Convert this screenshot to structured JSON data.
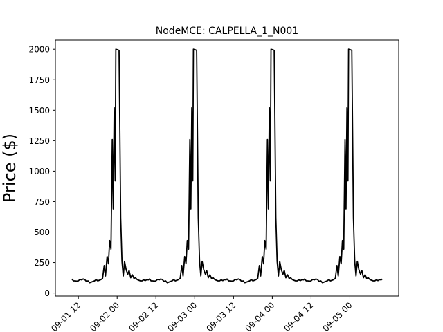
{
  "chart_data": {
    "type": "line",
    "title": "NodeMCE: CALPELLA_1_N001",
    "xlabel": "",
    "ylabel": "Price ($)",
    "ylim": [
      -25,
      2075
    ],
    "yticks": [
      0,
      250,
      500,
      750,
      1000,
      1250,
      1500,
      1750,
      2000
    ],
    "xticks": [
      {
        "label": "09-01 12",
        "hour": 12
      },
      {
        "label": "09-02 00",
        "hour": 24
      },
      {
        "label": "09-02 12",
        "hour": 36
      },
      {
        "label": "09-03 00",
        "hour": 48
      },
      {
        "label": "09-03 12",
        "hour": 60
      },
      {
        "label": "09-04 00",
        "hour": 72
      },
      {
        "label": "09-04 12",
        "hour": 84
      },
      {
        "label": "09-05 00",
        "hour": 96
      }
    ],
    "grid": false,
    "line_color": "#000000",
    "series": [
      {
        "name": "",
        "daily_profile": [
          {
            "t": 0,
            "y": 115
          },
          {
            "t": 0.5,
            "y": 100
          },
          {
            "t": 1,
            "y": 100
          },
          {
            "t": 1.5,
            "y": 98
          },
          {
            "t": 2,
            "y": 100
          },
          {
            "t": 2.5,
            "y": 112
          },
          {
            "t": 3,
            "y": 108
          },
          {
            "t": 3.5,
            "y": 115
          },
          {
            "t": 4,
            "y": 110
          },
          {
            "t": 4.5,
            "y": 95
          },
          {
            "t": 5,
            "y": 100
          },
          {
            "t": 5.5,
            "y": 85
          },
          {
            "t": 6,
            "y": 90
          },
          {
            "t": 6.5,
            "y": 95
          },
          {
            "t": 7,
            "y": 100
          },
          {
            "t": 7.5,
            "y": 110
          },
          {
            "t": 8,
            "y": 100
          },
          {
            "t": 8.5,
            "y": 105
          },
          {
            "t": 9,
            "y": 110
          },
          {
            "t": 9.5,
            "y": 120
          },
          {
            "t": 10,
            "y": 225
          },
          {
            "t": 10.4,
            "y": 140
          },
          {
            "t": 10.9,
            "y": 300
          },
          {
            "t": 11.3,
            "y": 240
          },
          {
            "t": 11.7,
            "y": 430
          },
          {
            "t": 12.1,
            "y": 360
          },
          {
            "t": 12.5,
            "y": 1260
          },
          {
            "t": 12.8,
            "y": 690
          },
          {
            "t": 13.1,
            "y": 1520
          },
          {
            "t": 13.4,
            "y": 920
          },
          {
            "t": 13.6,
            "y": 2000
          },
          {
            "t": 14.2,
            "y": 1995
          },
          {
            "t": 14.6,
            "y": 1990
          },
          {
            "t": 15.1,
            "y": 620
          },
          {
            "t": 15.5,
            "y": 260
          },
          {
            "t": 15.9,
            "y": 140
          },
          {
            "t": 16.3,
            "y": 260
          },
          {
            "t": 16.8,
            "y": 190
          },
          {
            "t": 17.3,
            "y": 155
          },
          {
            "t": 17.7,
            "y": 185
          },
          {
            "t": 18.2,
            "y": 125
          },
          {
            "t": 18.7,
            "y": 150
          },
          {
            "t": 19.2,
            "y": 120
          },
          {
            "t": 19.7,
            "y": 125
          },
          {
            "t": 20.2,
            "y": 110
          },
          {
            "t": 20.7,
            "y": 105
          },
          {
            "t": 21.2,
            "y": 100
          },
          {
            "t": 21.7,
            "y": 100
          },
          {
            "t": 22.2,
            "y": 108
          },
          {
            "t": 22.7,
            "y": 102
          },
          {
            "t": 23.2,
            "y": 110
          },
          {
            "t": 23.7,
            "y": 108
          }
        ],
        "start_hour": 10,
        "end_hour": 106
      }
    ]
  }
}
